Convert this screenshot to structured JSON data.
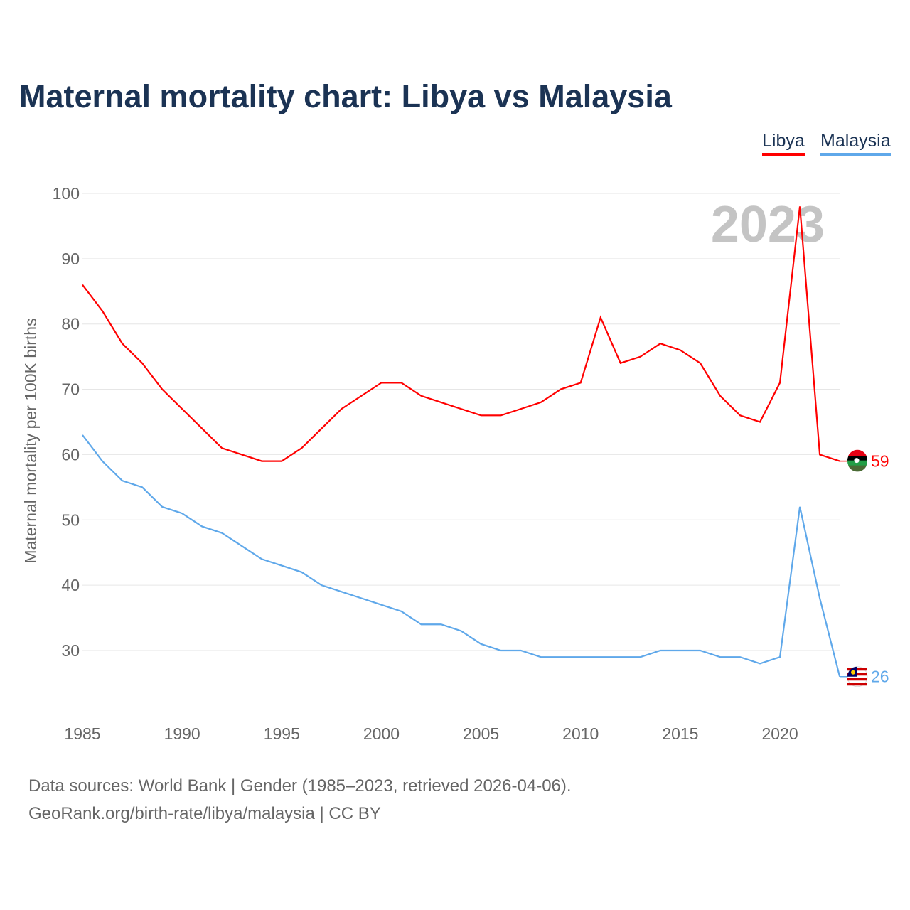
{
  "chart_data": {
    "type": "line",
    "title": "Maternal mortality chart: Libya vs Malaysia",
    "ylabel": "Maternal mortality per 100K births",
    "xlabel": "",
    "year_label": "2023",
    "x": [
      1985,
      1986,
      1987,
      1988,
      1989,
      1990,
      1991,
      1992,
      1993,
      1994,
      1995,
      1996,
      1997,
      1998,
      1999,
      2000,
      2001,
      2002,
      2003,
      2004,
      2005,
      2006,
      2007,
      2008,
      2009,
      2010,
      2011,
      2012,
      2013,
      2014,
      2015,
      2016,
      2017,
      2018,
      2019,
      2020,
      2021,
      2022,
      2023
    ],
    "xticks": [
      "1985",
      "1990",
      "1995",
      "2000",
      "2005",
      "2010",
      "2015",
      "2020"
    ],
    "yticks": [
      "30",
      "40",
      "50",
      "60",
      "70",
      "80",
      "90",
      "100"
    ],
    "ylim": [
      20,
      100
    ],
    "xlim": [
      1985,
      2023
    ],
    "grid": true,
    "legend_position": "top-right",
    "series": [
      {
        "name": "Libya",
        "color": "#ff0000",
        "end_label": "59",
        "values": [
          86,
          82,
          77,
          74,
          70,
          67,
          64,
          61,
          60,
          59,
          59,
          61,
          64,
          67,
          69,
          71,
          71,
          69,
          68,
          67,
          66,
          66,
          67,
          68,
          70,
          71,
          81,
          74,
          75,
          77,
          76,
          74,
          69,
          66,
          65,
          71,
          98,
          60,
          59
        ]
      },
      {
        "name": "Malaysia",
        "color": "#5fa8ea",
        "end_label": "26",
        "values": [
          63,
          59,
          56,
          55,
          52,
          51,
          49,
          48,
          46,
          44,
          43,
          42,
          40,
          39,
          38,
          37,
          36,
          34,
          34,
          33,
          31,
          30,
          30,
          29,
          29,
          29,
          29,
          29,
          29,
          30,
          30,
          30,
          29,
          29,
          28,
          29,
          52,
          38,
          26
        ]
      }
    ]
  },
  "source": {
    "line1": "Data sources: World Bank | Gender (1985–2023, retrieved 2026-04-06).",
    "line2": "GeoRank.org/birth-rate/libya/malaysia | CC BY"
  }
}
